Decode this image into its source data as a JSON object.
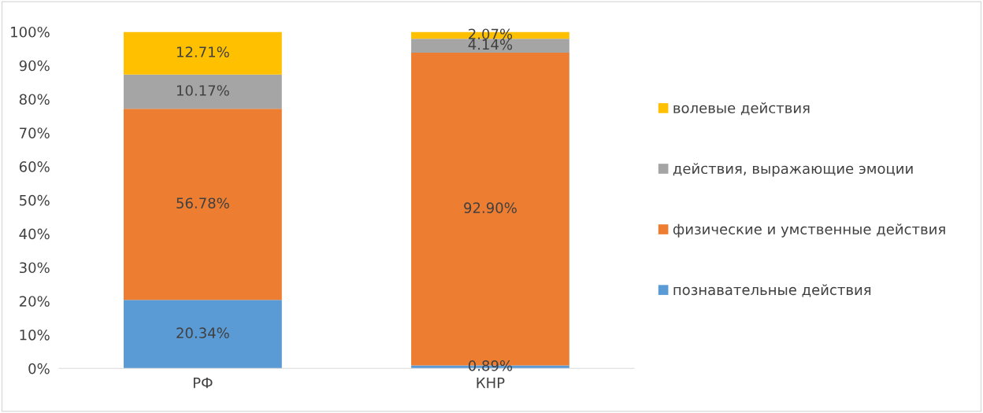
{
  "chart_data": {
    "type": "bar",
    "stacked": true,
    "categories": [
      "РФ",
      "КНР"
    ],
    "series": [
      {
        "name": "познавательные действия",
        "color": "#5b9bd5",
        "values": [
          20.34,
          0.89
        ],
        "value_labels": [
          "20.34%",
          "0.89%"
        ]
      },
      {
        "name": "физические и умственные действия",
        "color": "#ed7d31",
        "values": [
          56.78,
          92.9
        ],
        "value_labels": [
          "56.78%",
          "92.90%"
        ]
      },
      {
        "name": "действия, выражающие эмоции",
        "color": "#a5a5a5",
        "values": [
          10.17,
          4.14
        ],
        "value_labels": [
          "10.17%",
          "4.14%"
        ]
      },
      {
        "name": "волевые действия",
        "color": "#ffc000",
        "values": [
          12.71,
          2.07
        ],
        "value_labels": [
          "12.71%",
          "2.07%"
        ]
      }
    ],
    "ylim": [
      0,
      100
    ],
    "yticks": [
      {
        "value": 0,
        "label": "0%"
      },
      {
        "value": 10,
        "label": "10%"
      },
      {
        "value": 20,
        "label": "20%"
      },
      {
        "value": 30,
        "label": "30%"
      },
      {
        "value": 40,
        "label": "40%"
      },
      {
        "value": 50,
        "label": "50%"
      },
      {
        "value": 60,
        "label": "60%"
      },
      {
        "value": 70,
        "label": "70%"
      },
      {
        "value": 80,
        "label": "80%"
      },
      {
        "value": 90,
        "label": "90%"
      },
      {
        "value": 100,
        "label": "100%"
      }
    ],
    "grid": false,
    "legend": "right"
  }
}
